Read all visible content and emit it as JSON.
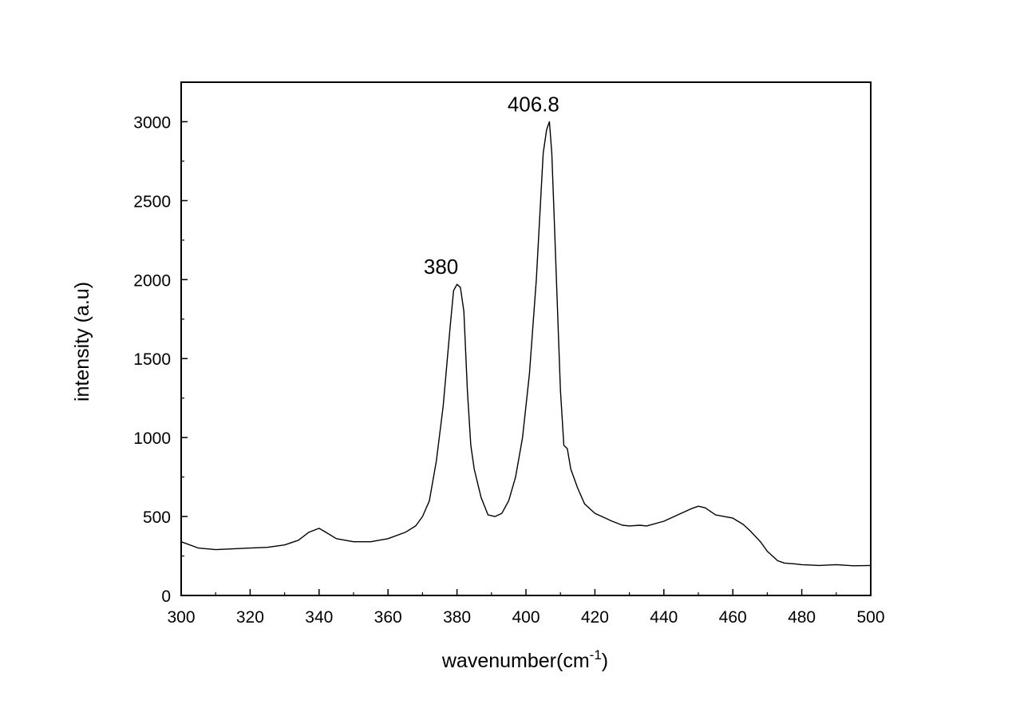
{
  "chart_data": {
    "type": "line",
    "xlabel": "wavenumber(cm",
    "xlabel_sup": "-1",
    "xlabel_tail": ")",
    "ylabel": "intensity (a.u)",
    "xlim": [
      300,
      500
    ],
    "ylim": [
      0,
      3250
    ],
    "grid": false,
    "legend": "none",
    "x_ticks": [
      "300",
      "320",
      "340",
      "360",
      "380",
      "400",
      "420",
      "440",
      "460",
      "480",
      "500"
    ],
    "y_ticks": [
      "0",
      "500",
      "1000",
      "1500",
      "2000",
      "2500",
      "3000"
    ],
    "line_color": "#000000",
    "annotations": [
      {
        "text": "380",
        "x": 380,
        "y": 1970
      },
      {
        "text": "406.8",
        "x": 406.8,
        "y": 3000
      }
    ],
    "series": [
      {
        "x": [
          300,
          305,
          310,
          315,
          320,
          325,
          330,
          334,
          337,
          340,
          342,
          345,
          350,
          355,
          360,
          365,
          368,
          370,
          372,
          374,
          376,
          378,
          379,
          380,
          381,
          382,
          383,
          384,
          385,
          387,
          389,
          391,
          393,
          395,
          397,
          399,
          401,
          403,
          404,
          405,
          406,
          406.8,
          407.5,
          408,
          409,
          410,
          411,
          412,
          413,
          415,
          417,
          420,
          425,
          428,
          430,
          433,
          435,
          440,
          445,
          448,
          450,
          452,
          455,
          460,
          463,
          465,
          468,
          470,
          473,
          475,
          478,
          480,
          485,
          490,
          495,
          500
        ],
        "y": [
          340,
          300,
          290,
          295,
          300,
          305,
          320,
          350,
          400,
          425,
          400,
          360,
          340,
          340,
          360,
          400,
          440,
          500,
          600,
          850,
          1200,
          1700,
          1930,
          1970,
          1950,
          1800,
          1300,
          950,
          800,
          620,
          510,
          500,
          520,
          600,
          750,
          1000,
          1400,
          2000,
          2400,
          2800,
          2950,
          3000,
          2800,
          2500,
          1900,
          1300,
          950,
          930,
          800,
          680,
          580,
          520,
          470,
          445,
          440,
          445,
          440,
          470,
          520,
          550,
          565,
          555,
          510,
          490,
          450,
          410,
          340,
          280,
          220,
          205,
          200,
          195,
          190,
          195,
          188,
          190
        ]
      }
    ]
  }
}
